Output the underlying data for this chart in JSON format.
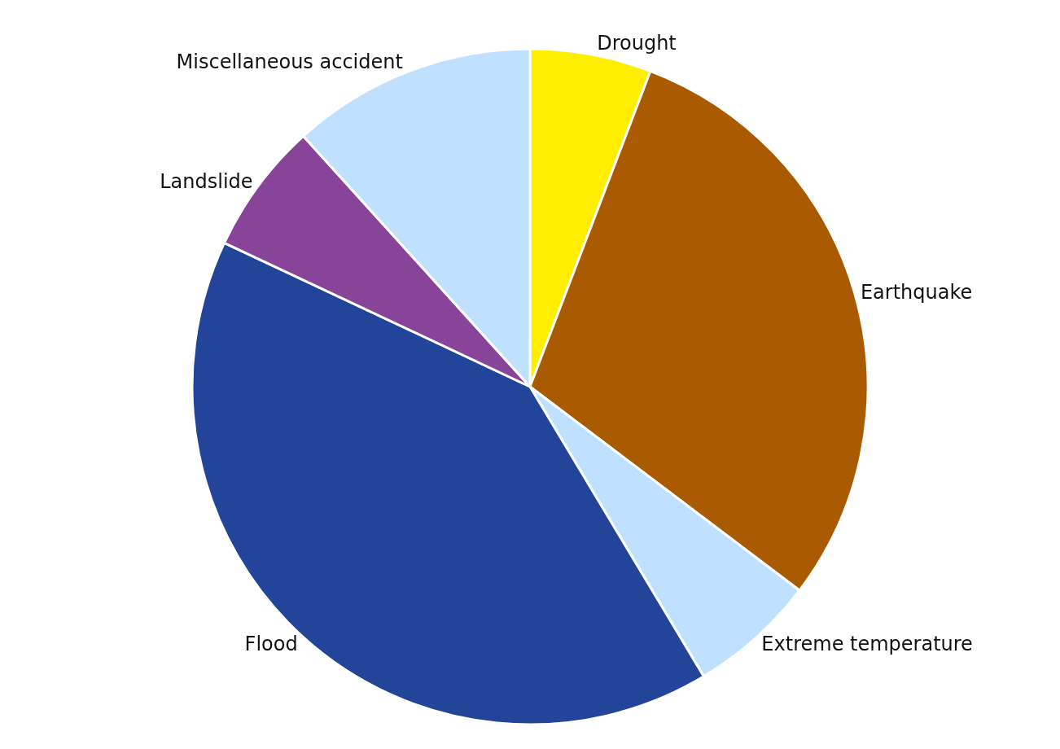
{
  "chart_data": {
    "type": "pie",
    "categories": [
      "Drought",
      "Earthquake",
      "Extreme temperature",
      "Flood",
      "Landslide",
      "Miscellaneous accident"
    ],
    "values": [
      5.8,
      29.5,
      6.1,
      40.6,
      6.3,
      11.7
    ],
    "colors": [
      "#ffee00",
      "#aa5a00",
      "#c0e0ff",
      "#224499",
      "#884499",
      "#c0e0ff"
    ],
    "legend": false
  }
}
